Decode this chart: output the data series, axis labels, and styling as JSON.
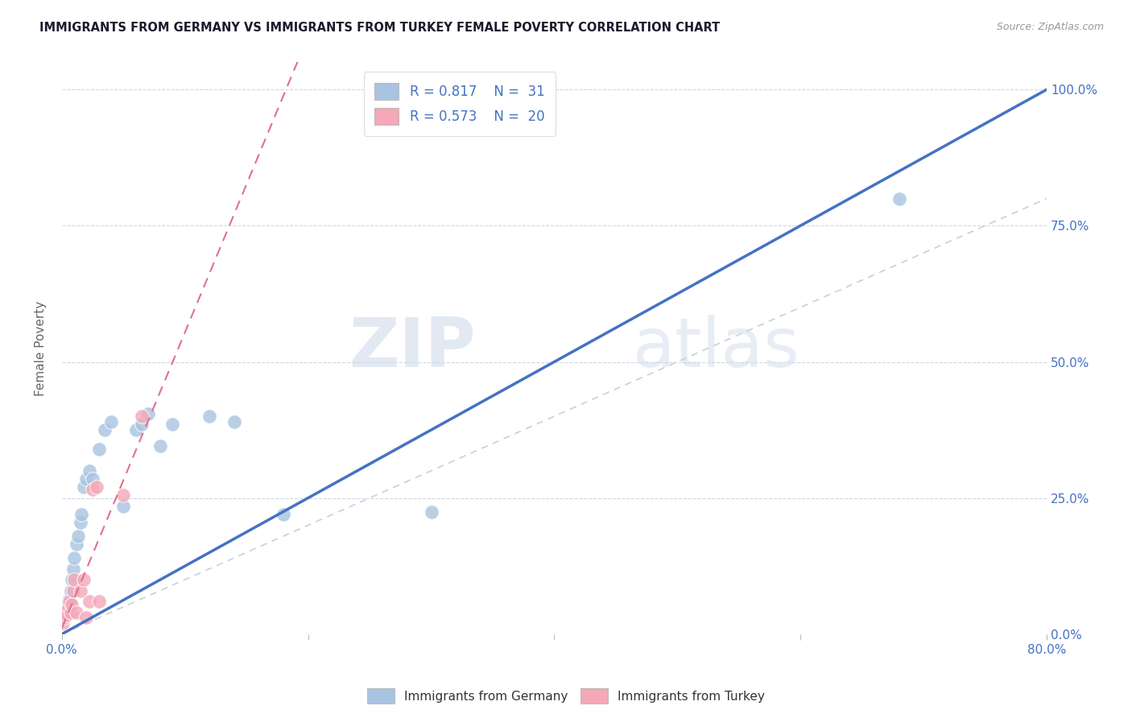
{
  "title": "IMMIGRANTS FROM GERMANY VS IMMIGRANTS FROM TURKEY FEMALE POVERTY CORRELATION CHART",
  "source": "Source: ZipAtlas.com",
  "ylabel": "Female Poverty",
  "xlim": [
    0.0,
    0.8
  ],
  "ylim": [
    0.0,
    1.05
  ],
  "xtick_vals": [
    0.0,
    0.2,
    0.4,
    0.6,
    0.8
  ],
  "xticklabels": [
    "0.0%",
    "",
    "",
    "",
    "80.0%"
  ],
  "ytick_labels_right": [
    "0.0%",
    "25.0%",
    "50.0%",
    "75.0%",
    "100.0%"
  ],
  "ytick_vals": [
    0.0,
    0.25,
    0.5,
    0.75,
    1.0
  ],
  "germany_color": "#a8c4e0",
  "turkey_color": "#f4a8b8",
  "germany_R": 0.817,
  "germany_N": 31,
  "turkey_R": 0.573,
  "turkey_N": 20,
  "watermark_zip": "ZIP",
  "watermark_atlas": "atlas",
  "legend_label_germany": "Immigrants from Germany",
  "legend_label_turkey": "Immigrants from Turkey",
  "germany_x": [
    0.002,
    0.003,
    0.004,
    0.005,
    0.006,
    0.007,
    0.008,
    0.009,
    0.01,
    0.012,
    0.013,
    0.015,
    0.016,
    0.018,
    0.02,
    0.022,
    0.025,
    0.03,
    0.035,
    0.04,
    0.05,
    0.06,
    0.065,
    0.07,
    0.08,
    0.09,
    0.12,
    0.14,
    0.18,
    0.3,
    0.68
  ],
  "germany_y": [
    0.03,
    0.05,
    0.055,
    0.045,
    0.065,
    0.08,
    0.1,
    0.12,
    0.14,
    0.165,
    0.18,
    0.205,
    0.22,
    0.27,
    0.285,
    0.3,
    0.285,
    0.34,
    0.375,
    0.39,
    0.235,
    0.375,
    0.385,
    0.405,
    0.345,
    0.385,
    0.4,
    0.39,
    0.22,
    0.225,
    0.8
  ],
  "turkey_x": [
    0.001,
    0.002,
    0.003,
    0.004,
    0.005,
    0.006,
    0.007,
    0.008,
    0.009,
    0.01,
    0.012,
    0.015,
    0.018,
    0.02,
    0.022,
    0.025,
    0.028,
    0.03,
    0.05,
    0.065
  ],
  "turkey_y": [
    0.02,
    0.03,
    0.04,
    0.035,
    0.05,
    0.06,
    0.04,
    0.055,
    0.08,
    0.1,
    0.04,
    0.08,
    0.1,
    0.03,
    0.06,
    0.265,
    0.27,
    0.06,
    0.255,
    0.4
  ],
  "grid_color": "#d0d8e4",
  "bg_color": "#ffffff",
  "title_color": "#1a1a2e",
  "axis_label_color": "#4472c4",
  "regression_germany_color": "#4472c4",
  "regression_turkey_color": "#e07090",
  "diagonal_color": "#c8d0dc"
}
